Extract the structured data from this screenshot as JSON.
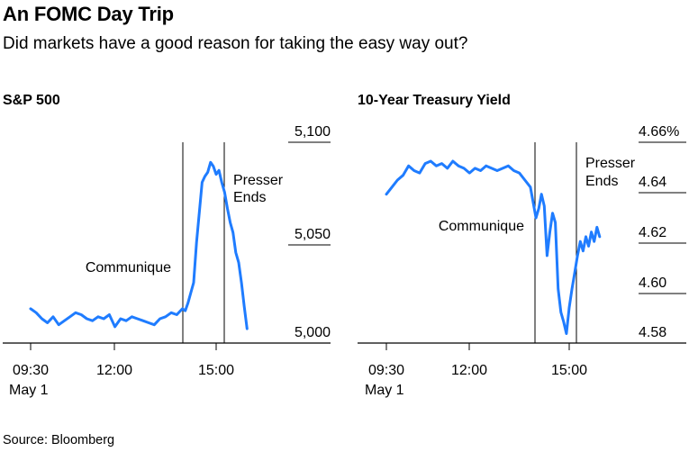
{
  "header": {
    "title": "An FOMC Day Trip",
    "subtitle": "Did markets have a good reason for taking the easy way out?"
  },
  "footer": {
    "source": "Source: Bloomberg"
  },
  "colors": {
    "line": "#1f7cff",
    "axis": "#000000",
    "text": "#000000"
  },
  "chart_data": [
    {
      "type": "line",
      "title": "S&P 500",
      "xlabel": "",
      "ylabel": "",
      "x_ticks": [
        "09:30",
        "12:00",
        "15:00"
      ],
      "x_sublabel": "May 1",
      "y_ticks": [
        "5,100",
        "5,050",
        "5,000"
      ],
      "ylim": [
        4990,
        5100
      ],
      "grid": false,
      "series": [
        {
          "name": "",
          "x": [
            "09:30",
            "09:40",
            "09:50",
            "10:00",
            "10:10",
            "10:20",
            "10:30",
            "10:40",
            "10:50",
            "11:00",
            "11:10",
            "11:20",
            "11:30",
            "11:40",
            "11:50",
            "12:00",
            "12:10",
            "12:20",
            "12:30",
            "12:40",
            "12:50",
            "13:00",
            "13:10",
            "13:20",
            "13:30",
            "13:40",
            "13:50",
            "14:00",
            "14:05",
            "14:10",
            "14:15",
            "14:20",
            "14:25",
            "14:30",
            "14:35",
            "14:40",
            "14:45",
            "14:50",
            "14:55",
            "15:00",
            "15:05",
            "15:10",
            "15:15",
            "15:20",
            "15:25",
            "15:30",
            "15:35",
            "15:40",
            "15:45",
            "15:50",
            "15:55"
          ],
          "y": [
            5017,
            5015,
            5012,
            5010,
            5013,
            5009,
            5011,
            5013,
            5015,
            5014,
            5012,
            5011,
            5013,
            5012,
            5014,
            5008,
            5012,
            5011,
            5013,
            5012,
            5011,
            5010,
            5009,
            5012,
            5013,
            5015,
            5014,
            5017,
            5016,
            5020,
            5025,
            5030,
            5050,
            5065,
            5080,
            5083,
            5085,
            5090,
            5088,
            5084,
            5086,
            5080,
            5075,
            5067,
            5060,
            5055,
            5045,
            5040,
            5030,
            5018,
            5007
          ]
        }
      ],
      "annotations": [
        {
          "label": "Communique",
          "x": "14:00"
        },
        {
          "label": "Presser Ends",
          "x": "15:15"
        }
      ]
    },
    {
      "type": "line",
      "title": "10-Year Treasury Yield",
      "xlabel": "",
      "ylabel": "",
      "x_ticks": [
        "09:30",
        "12:00",
        "15:00"
      ],
      "x_sublabel": "May 1",
      "y_ticks": [
        "4.66%",
        "4.64",
        "4.62",
        "4.60",
        "4.58"
      ],
      "ylim": [
        4.575,
        4.66
      ],
      "grid": false,
      "series": [
        {
          "name": "",
          "x": [
            "09:30",
            "09:40",
            "09:50",
            "10:00",
            "10:10",
            "10:20",
            "10:30",
            "10:40",
            "10:50",
            "11:00",
            "11:10",
            "11:20",
            "11:30",
            "11:40",
            "11:50",
            "12:00",
            "12:10",
            "12:20",
            "12:30",
            "12:40",
            "12:50",
            "13:00",
            "13:10",
            "13:20",
            "13:30",
            "13:40",
            "13:50",
            "14:00",
            "14:05",
            "14:10",
            "14:15",
            "14:20",
            "14:25",
            "14:30",
            "14:35",
            "14:40",
            "14:45",
            "14:50",
            "14:55",
            "15:00",
            "15:05",
            "15:10",
            "15:15",
            "15:20",
            "15:25",
            "15:30",
            "15:35",
            "15:40",
            "15:45",
            "15:50",
            "15:55"
          ],
          "y": [
            4.638,
            4.641,
            4.644,
            4.646,
            4.65,
            4.648,
            4.647,
            4.651,
            4.652,
            4.65,
            4.651,
            4.649,
            4.652,
            4.65,
            4.649,
            4.647,
            4.649,
            4.648,
            4.65,
            4.649,
            4.648,
            4.649,
            4.65,
            4.648,
            4.647,
            4.644,
            4.641,
            4.628,
            4.632,
            4.638,
            4.633,
            4.612,
            4.622,
            4.63,
            4.626,
            4.598,
            4.588,
            4.584,
            4.579,
            4.59,
            4.598,
            4.605,
            4.612,
            4.618,
            4.614,
            4.62,
            4.616,
            4.622,
            4.618,
            4.624,
            4.62
          ]
        }
      ],
      "annotations": [
        {
          "label": "Communique",
          "x": "14:00"
        },
        {
          "label": "Presser Ends",
          "x": "15:15"
        }
      ]
    }
  ]
}
